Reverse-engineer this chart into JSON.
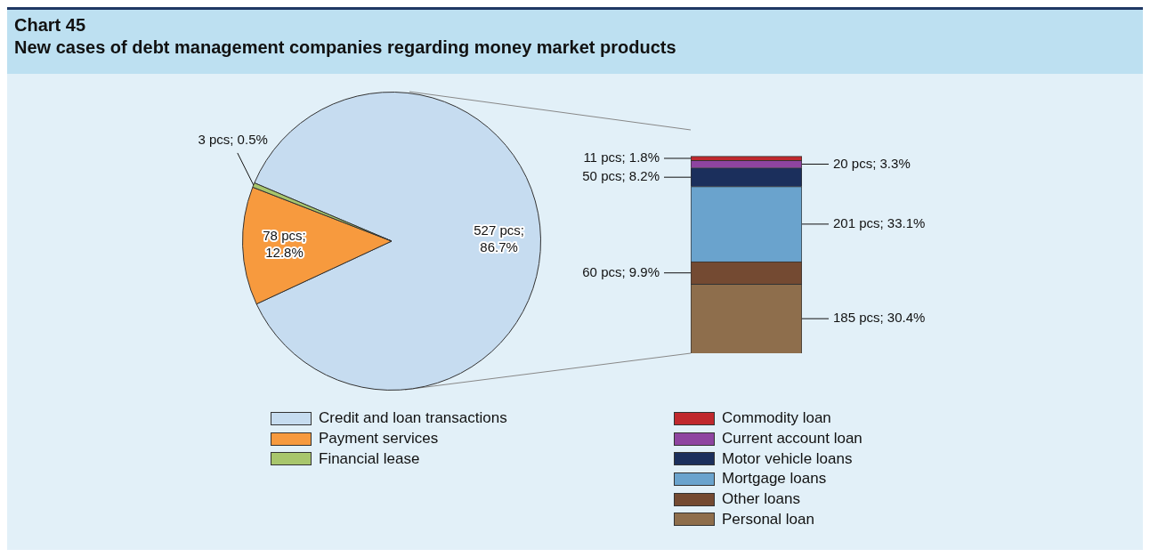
{
  "chart_data": [
    {
      "type": "pie",
      "title": "Chart 45",
      "subtitle": "New cases of debt management companies regarding money market products",
      "categories": [
        "Credit and loan transactions",
        "Payment services",
        "Financial lease"
      ],
      "values": [
        527,
        78,
        3
      ],
      "value_labels": [
        "527 pcs; 86.7%",
        "78 pcs; 12.8%",
        "3 pcs; 0.5%"
      ],
      "colors": [
        "#c6dcf0",
        "#f79a3e",
        "#a8c66c"
      ],
      "legend": "bottom"
    },
    {
      "type": "bar",
      "stacked": true,
      "categories": [
        null
      ],
      "legend": "bottom",
      "series": [
        {
          "name": "Personal loan",
          "color": "#8e6e4c",
          "values": [
            185
          ],
          "value_labels": [
            "185 pcs; 30.4%"
          ]
        },
        {
          "name": "Other loans",
          "color": "#744a32",
          "values": [
            60
          ],
          "value_labels": [
            "60 pcs; 9.9%"
          ]
        },
        {
          "name": "Mortgage loans",
          "color": "#6aa3cd",
          "values": [
            201
          ],
          "value_labels": [
            "201 pcs; 33.1%"
          ]
        },
        {
          "name": "Motor vehicle loans",
          "color": "#1b2f5c",
          "values": [
            50
          ],
          "value_labels": [
            "50 pcs; 8.2%"
          ]
        },
        {
          "name": "Current account loan",
          "color": "#8e44a0",
          "values": [
            20
          ],
          "value_labels": [
            "20 pcs; 3.3%"
          ]
        },
        {
          "name": "Commodity loan",
          "color": "#c0282d",
          "values": [
            11
          ],
          "value_labels": [
            "11 pcs; 1.8%"
          ]
        }
      ]
    }
  ]
}
